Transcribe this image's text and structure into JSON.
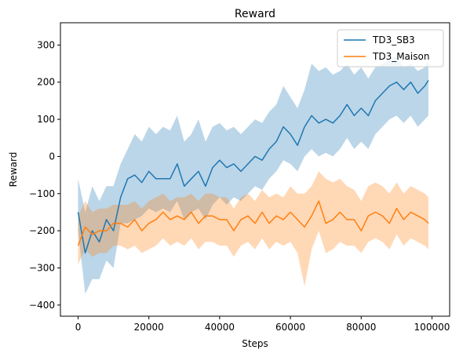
{
  "chart_data": {
    "type": "line",
    "title": "Reward",
    "xlabel": "Steps",
    "ylabel": "Reward",
    "xlim": [
      -5000,
      105000
    ],
    "ylim": [
      -430,
      360
    ],
    "xticks": [
      0,
      20000,
      40000,
      60000,
      80000,
      100000
    ],
    "yticks": [
      -400,
      -300,
      -200,
      -100,
      0,
      100,
      200,
      300
    ],
    "xtick_labels": [
      "0",
      "20000",
      "40000",
      "60000",
      "80000",
      "100000"
    ],
    "ytick_labels": [
      "−400",
      "−300",
      "−200",
      "−100",
      "0",
      "100",
      "200",
      "300"
    ],
    "grid": false,
    "legend_position": "top-right",
    "series": [
      {
        "name": "TD3_SB3",
        "color": "#1f77b4",
        "band_color": "#1f77b4",
        "band_opacity": 0.3,
        "x": [
          0,
          2000,
          4000,
          6000,
          8000,
          10000,
          12000,
          14000,
          16000,
          18000,
          20000,
          22000,
          24000,
          26000,
          28000,
          30000,
          32000,
          34000,
          36000,
          38000,
          40000,
          42000,
          44000,
          46000,
          48000,
          50000,
          52000,
          54000,
          56000,
          58000,
          60000,
          62000,
          64000,
          66000,
          68000,
          70000,
          72000,
          74000,
          76000,
          78000,
          80000,
          82000,
          84000,
          86000,
          88000,
          90000,
          92000,
          94000,
          96000,
          98000,
          99000
        ],
        "y": [
          -150,
          -260,
          -200,
          -230,
          -170,
          -200,
          -110,
          -60,
          -50,
          -70,
          -40,
          -60,
          -60,
          -60,
          -20,
          -80,
          -60,
          -40,
          -80,
          -30,
          -10,
          -30,
          -20,
          -40,
          -20,
          0,
          -10,
          20,
          40,
          80,
          60,
          30,
          80,
          110,
          90,
          100,
          90,
          110,
          140,
          110,
          130,
          110,
          150,
          170,
          190,
          200,
          180,
          200,
          170,
          190,
          205
        ],
        "lower": [
          -200,
          -370,
          -330,
          -330,
          -280,
          -300,
          -180,
          -180,
          -170,
          -160,
          -140,
          -150,
          -140,
          -150,
          -120,
          -170,
          -150,
          -140,
          -170,
          -130,
          -110,
          -130,
          -110,
          -120,
          -100,
          -80,
          -90,
          -60,
          -40,
          -10,
          -20,
          -40,
          0,
          20,
          0,
          10,
          0,
          20,
          50,
          20,
          40,
          20,
          60,
          80,
          100,
          110,
          90,
          110,
          80,
          100,
          110
        ],
        "upper": [
          -60,
          -150,
          -80,
          -120,
          -80,
          -80,
          -20,
          20,
          60,
          40,
          80,
          60,
          80,
          70,
          110,
          40,
          60,
          100,
          40,
          80,
          90,
          70,
          80,
          60,
          80,
          100,
          90,
          120,
          140,
          190,
          160,
          130,
          180,
          250,
          230,
          240,
          220,
          230,
          250,
          220,
          240,
          210,
          240,
          250,
          260,
          270,
          240,
          250,
          230,
          240,
          260
        ]
      },
      {
        "name": "TD3_Maison",
        "color": "#ff7f0e",
        "band_color": "#ff7f0e",
        "band_opacity": 0.3,
        "x": [
          0,
          2000,
          4000,
          6000,
          8000,
          10000,
          12000,
          14000,
          16000,
          18000,
          20000,
          22000,
          24000,
          26000,
          28000,
          30000,
          32000,
          34000,
          36000,
          38000,
          40000,
          42000,
          44000,
          46000,
          48000,
          50000,
          52000,
          54000,
          56000,
          58000,
          60000,
          62000,
          64000,
          66000,
          68000,
          70000,
          72000,
          74000,
          76000,
          78000,
          80000,
          82000,
          84000,
          86000,
          88000,
          90000,
          92000,
          94000,
          96000,
          98000,
          99000
        ],
        "y": [
          -240,
          -190,
          -210,
          -200,
          -200,
          -180,
          -180,
          -190,
          -170,
          -200,
          -180,
          -170,
          -150,
          -170,
          -160,
          -170,
          -150,
          -180,
          -160,
          -160,
          -170,
          -170,
          -200,
          -170,
          -160,
          -180,
          -150,
          -180,
          -160,
          -170,
          -150,
          -170,
          -190,
          -160,
          -120,
          -180,
          -170,
          -150,
          -170,
          -170,
          -200,
          -160,
          -150,
          -160,
          -180,
          -140,
          -170,
          -150,
          -160,
          -170,
          -180
        ],
        "lower": [
          -290,
          -250,
          -270,
          -260,
          -260,
          -240,
          -240,
          -250,
          -240,
          -260,
          -250,
          -240,
          -220,
          -240,
          -230,
          -240,
          -220,
          -250,
          -230,
          -230,
          -240,
          -240,
          -270,
          -240,
          -230,
          -250,
          -220,
          -250,
          -230,
          -240,
          -230,
          -260,
          -350,
          -250,
          -200,
          -260,
          -250,
          -230,
          -240,
          -240,
          -260,
          -230,
          -220,
          -230,
          -250,
          -210,
          -240,
          -220,
          -230,
          -240,
          -250
        ],
        "upper": [
          -160,
          -120,
          -150,
          -140,
          -140,
          -130,
          -130,
          -130,
          -120,
          -140,
          -120,
          -110,
          -100,
          -120,
          -110,
          -110,
          -100,
          -120,
          -100,
          -100,
          -110,
          -110,
          -140,
          -110,
          -100,
          -120,
          -90,
          -110,
          -100,
          -110,
          -80,
          -100,
          -100,
          -80,
          -40,
          -60,
          -70,
          -60,
          -80,
          -90,
          -120,
          -80,
          -70,
          -80,
          -100,
          -70,
          -100,
          -80,
          -90,
          -100,
          -110
        ]
      }
    ]
  }
}
